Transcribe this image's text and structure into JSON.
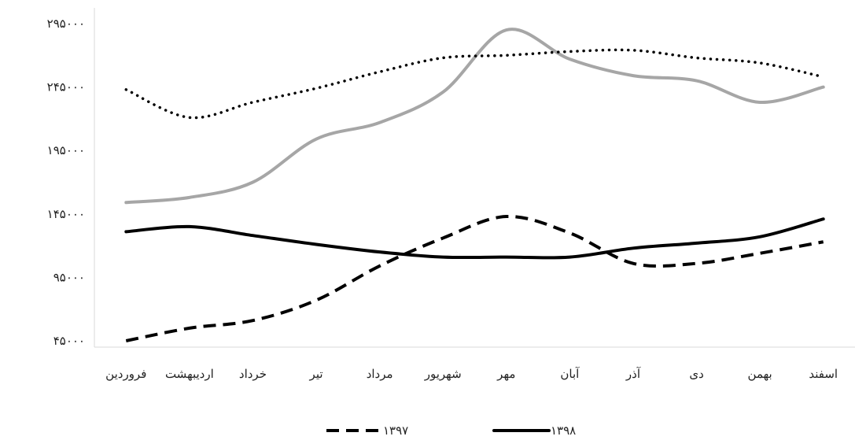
{
  "chart_data": {
    "type": "line",
    "title": "",
    "xlabel": "",
    "ylabel": "",
    "categories": [
      "فروردین",
      "اردیبهشت",
      "خرداد",
      "تیر",
      "مرداد",
      "شهریور",
      "مهر",
      "آبان",
      "آذر",
      "دی",
      "بهمن",
      "اسفند"
    ],
    "y_ticks": [
      "۴۵۰۰۰",
      "۹۵۰۰۰",
      "۱۴۵۰۰۰",
      "۱۹۵۰۰۰",
      "۲۴۵۰۰۰",
      "۲۹۵۰۰۰"
    ],
    "y_tick_values": [
      45000,
      95000,
      145000,
      195000,
      245000,
      295000
    ],
    "ylim": [
      45000,
      295000
    ],
    "grid": false,
    "legend_position": "bottom",
    "series": [
      {
        "name": "۱۳۹۷",
        "style": "dashed",
        "color": "#000000",
        "values": [
          45000,
          55000,
          61000,
          77000,
          104000,
          126000,
          143000,
          130000,
          106000,
          106000,
          114000,
          123000
        ]
      },
      {
        "name": "۱۳۹۸",
        "style": "solid",
        "color": "#000000",
        "values": [
          131000,
          135000,
          128000,
          121000,
          115000,
          111000,
          111000,
          111000,
          118000,
          122000,
          127000,
          141000
        ]
      },
      {
        "name": "",
        "style": "solid",
        "color": "#a6a6a6",
        "values": [
          154000,
          158000,
          170000,
          204000,
          217000,
          241000,
          290000,
          267000,
          254000,
          250000,
          233000,
          245000
        ]
      },
      {
        "name": "",
        "style": "dotted",
        "color": "#000000",
        "values": [
          243000,
          221000,
          233000,
          244000,
          257000,
          268000,
          270000,
          273000,
          274000,
          268000,
          264000,
          253000
        ]
      }
    ]
  }
}
